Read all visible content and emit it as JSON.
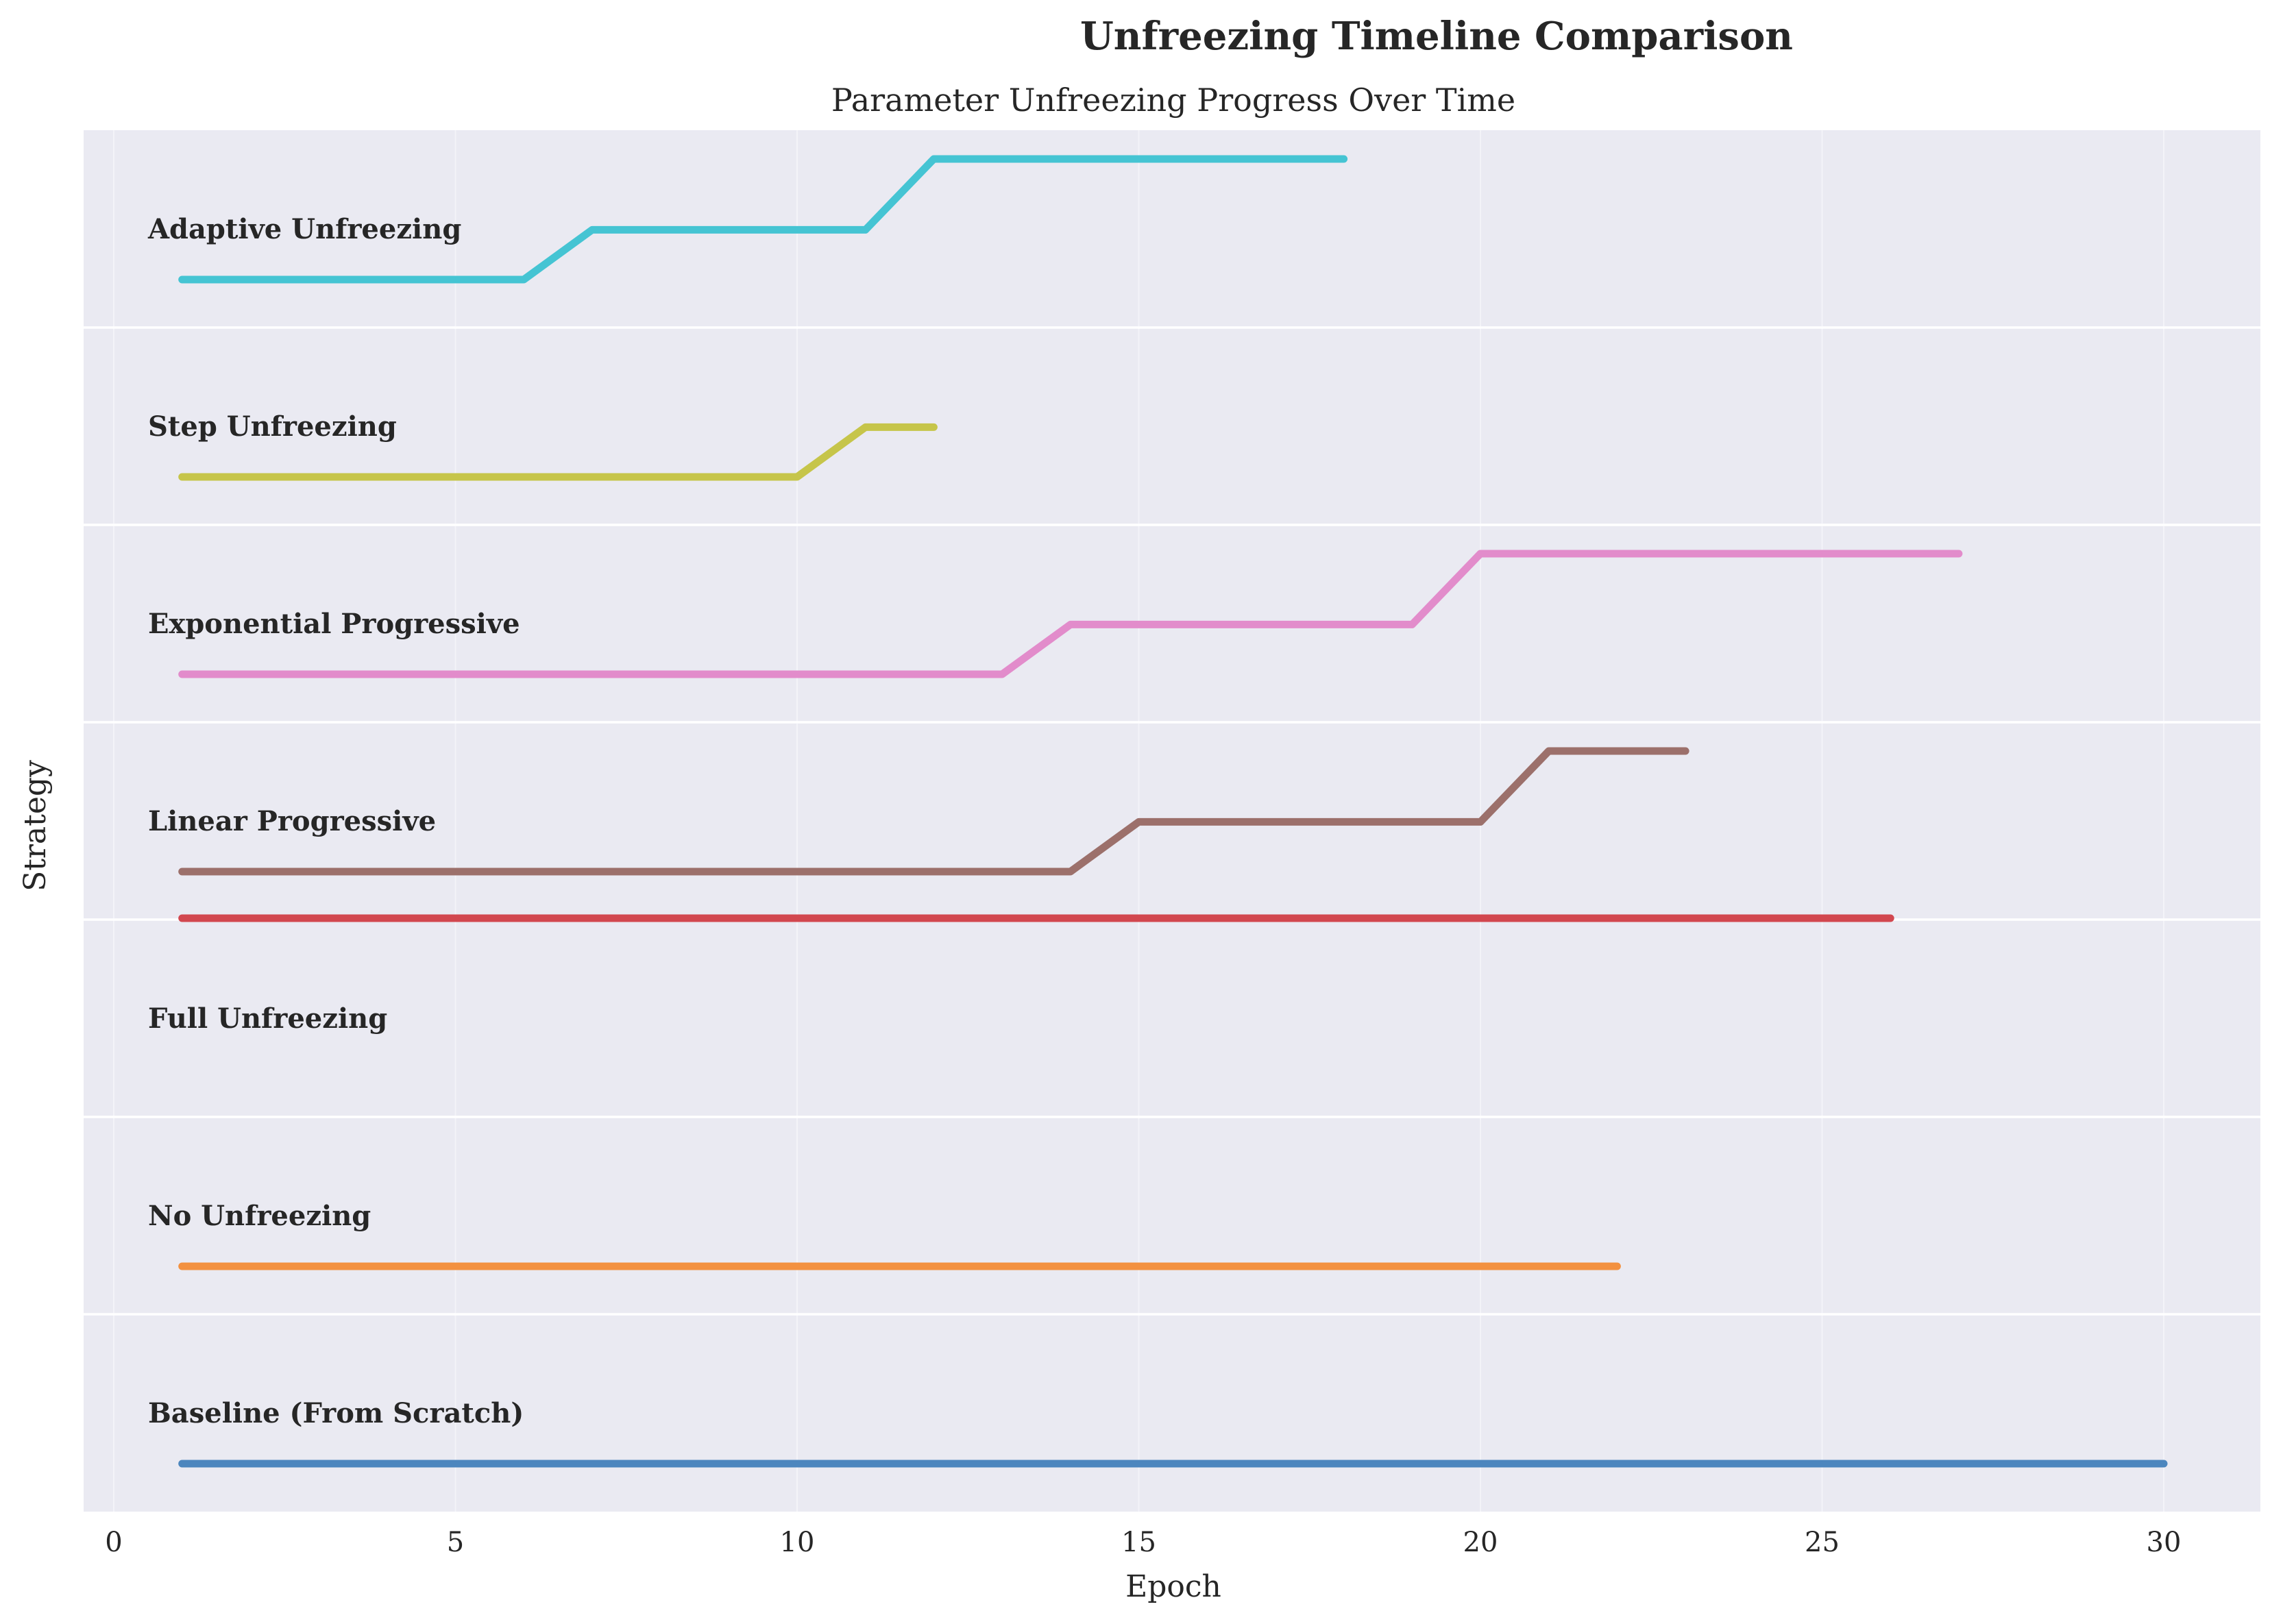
{
  "chart_data": {
    "type": "line",
    "suptitle": "Unfreezing Timeline Comparison",
    "title": "Parameter Unfreezing Progress Over Time",
    "xlabel": "Epoch",
    "ylabel": "Strategy",
    "xlim": [
      -0.45,
      31.4
    ],
    "xticks": [
      0,
      5,
      10,
      15,
      20,
      25,
      30
    ],
    "grid": true,
    "background": "#eaeaf2",
    "series": [
      {
        "name": "Baseline (From Scratch)",
        "color": "#4c86be",
        "row": 0,
        "x": [
          1,
          30
        ],
        "y": [
          0,
          0
        ]
      },
      {
        "name": "No Unfreezing",
        "color": "#f39140",
        "row": 1,
        "x": [
          1,
          22
        ],
        "y": [
          0,
          0
        ]
      },
      {
        "name": "Full Unfreezing",
        "color": "#d2474f",
        "row": 2,
        "x": [
          1,
          26
        ],
        "y": [
          1,
          1
        ]
      },
      {
        "name": "Linear Progressive",
        "color": "#9c706b",
        "row": 3,
        "x": [
          1,
          14,
          15,
          20,
          21,
          23
        ],
        "y": [
          0,
          0,
          0.33,
          0.33,
          0.8,
          0.8
        ]
      },
      {
        "name": "Exponential Progressive",
        "color": "#e28ccb",
        "row": 4,
        "x": [
          1,
          13,
          14,
          19,
          20,
          27
        ],
        "y": [
          0,
          0,
          0.33,
          0.33,
          0.8,
          0.8
        ]
      },
      {
        "name": "Step Unfreezing",
        "color": "#c6c54a",
        "row": 5,
        "x": [
          1,
          10,
          11,
          12
        ],
        "y": [
          0,
          0,
          0.33,
          0.33
        ]
      },
      {
        "name": "Adaptive Unfreezing",
        "color": "#45c4d3",
        "row": 6,
        "x": [
          1,
          6,
          7,
          11,
          12,
          18
        ],
        "y": [
          0,
          0,
          0.33,
          0.33,
          0.8,
          0.8
        ]
      }
    ]
  }
}
